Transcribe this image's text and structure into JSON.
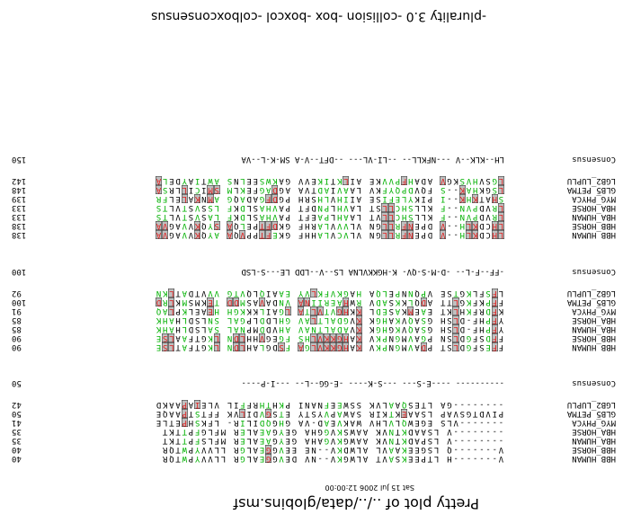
{
  "title": "Pretty plot of ../../data/globins.msf",
  "date": "Sat 15 Jul 2006 12:00:00",
  "footer": "-plurality 3.0 -collision -box -boxcol -colboxconsensus",
  "colors": {
    "identical": "#e02020",
    "similar": "#00b000",
    "box_fill": "#c0c0c0"
  },
  "blocks": [
    {
      "rows": [
        {
          "name": "HBB_HUMAN",
          "seq": "V-------H LTPEEKSAVT ALWGKV--NV DEVGGEALGR LLVVYPWTQR",
          "pos": "40"
        },
        {
          "name": "HBB_HORSE",
          "seq": "V-------Q LSGEEKAAVL ALWDKV--NE EEVGGEALGR LLVVYPWTQR",
          "pos": "40"
        },
        {
          "name": "HBA_HUMAN",
          "seq": "--------V LSPADKTNVK AAWGKVGAHA GEYGAEALER MFLSFPTTKT",
          "pos": "35"
        },
        {
          "name": "HBA_HORSE",
          "seq": "--------V LSAADKTNVK AAWSKVGGHA GEYGAEALER MFLGFPTTKT",
          "pos": "35"
        },
        {
          "name": "MYG_PHYCA",
          "seq": "-------VLS EGEWQLVLHV WAKVEAD-VA GHGQDILIR- LFKSHPETLE",
          "pos": "41"
        },
        {
          "name": "GLB5_PETMA",
          "seq": "PIVDTGSVAP LSAAEKTKIR SAWAPVYSTY ETSGVDILVK FFTSTPAAQE",
          "pos": "50"
        },
        {
          "name": "LGB2_LUPLU",
          "seq": "--------GA LTESQAALVK SSWEEFNANI PKHTHRFFIL VLEIAPAAKD",
          "pos": "42"
        },
        {
          "name": "Consensus",
          "seq": "---------- ----E-S--- ---S-K---- -E-GG--L-- ---I-P----",
          "pos": "50"
        }
      ]
    },
    {
      "rows": [
        {
          "name": "HBB_HUMAN",
          "seq": "FFESFGDLST PDAVMGNPKV KAHGKKVLGA FSDGLAHLDN LKGTFATLSE",
          "pos": "90"
        },
        {
          "name": "HBB_HORSE",
          "seq": "FFDSFGDLSN PGAVMGNPKV KAHGKKVLHS FGEGVHHLDN LKGTFAALSE",
          "pos": "90"
        },
        {
          "name": "HBA_HUMAN",
          "seq": "YFPHF-DLSH GSAQVKGHGK KVADALTNAV AHVDDMPNAL SALSDLHAHK",
          "pos": "85"
        },
        {
          "name": "HBA_HORSE",
          "seq": "YFPHF-DLSH GSAQVKAHGK KVGDALTLAV GHLDDLPGAL SNLSDLHAHK",
          "pos": "85"
        },
        {
          "name": "MYG_PHYCA",
          "seq": "KFDRFKHLKT EAEMKASEDL KKHGVTVLTA LGAILKKKGH HEAELKPLAQ",
          "pos": "91"
        },
        {
          "name": "GLB5_PETMA",
          "seq": "FFPKFKGLTT ADQLKKSADV RWHAERIINA VNDAVASMDD TEKMSMKLRD",
          "pos": "100"
        },
        {
          "name": "LGB2_LUPLU",
          "seq": "LFSFLKGTSE VPQNNPELQA HAGKVFKLVY EAAIQLQVTG VVVTDATLKN",
          "pos": "92"
        },
        {
          "name": "Consensus",
          "seq": "-FF--F-L-- -D-M-S-QV- K-HGKKVLNA LS--V--LDD LE---S-LSD",
          "pos": "100"
        }
      ]
    },
    {
      "rows": [
        {
          "name": "HBB_HUMAN",
          "seq": "LHCDKLH--V DPENFRLLGN VLVCVLAHHF GKEFTPPVQA AYQKVVAGVA",
          "pos": "138"
        },
        {
          "name": "HBB_HORSE",
          "seq": "LHCDKLH--V DPENFRLLGN VLVVVLARHF GKDFTPELQA SYQKVVAGVA",
          "pos": "138"
        },
        {
          "name": "HBA_HUMAN",
          "seq": "LRVDPVN--F KLLSHCLLVT LAAHLPAEFT PAVHASLDKF LASVSTVLTS",
          "pos": "133"
        },
        {
          "name": "HBA_HORSE",
          "seq": "LRVDPVN--F KLLSHCLLST LAVHLPNDFT PAVHASLDKF LSSVSTVLTS",
          "pos": "133"
        },
        {
          "name": "MYG_PHYCA",
          "seq": "SHATKHK--I PIKYLEFISE AIIHVLHSRH PGDFGADAQG AMNKALELFR",
          "pos": "139"
        },
        {
          "name": "GLB5_PETMA",
          "seq": "LSGKHAK--S FQVDPQYFKV LAAVIADTVA AGDAGFEKLM SMICILLRSA",
          "pos": "148"
        },
        {
          "name": "LGB2_LUPLU",
          "seq": "LGSVHVSKGV ADAHFPVVKE AILKTIKEVV GAKWSEELNS AWTIAYDELA",
          "pos": "142"
        },
        {
          "name": "Consensus",
          "seq": "LH--KLK--V ---NFKLL-- --LI-VL--- --DFT--V-A SM-K-L--VA",
          "pos": "150"
        }
      ]
    }
  ]
}
